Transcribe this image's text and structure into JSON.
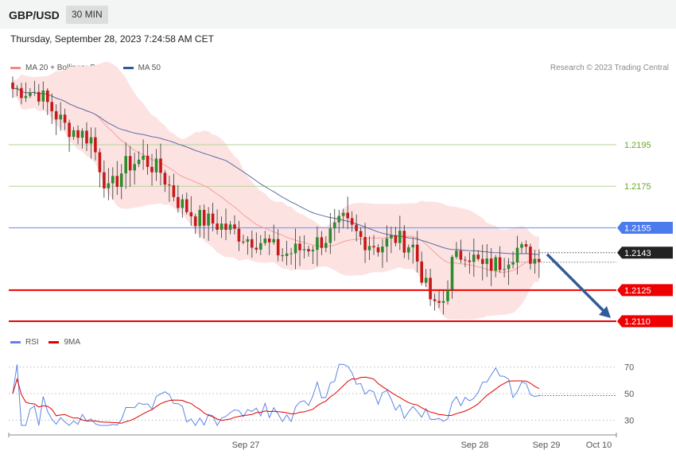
{
  "header": {
    "symbol": "GBP/USD",
    "interval": "30 MIN",
    "timestamp": "Thursday, September 28, 2023 7:24:58 AM CET"
  },
  "legend": {
    "items": [
      {
        "label": "MA 20 + Bollinger Bands",
        "color": "#f28b82"
      },
      {
        "label": "MA 50",
        "color": "#2f5b9a"
      }
    ]
  },
  "credit": "Research © 2023 Trading Central",
  "rsi_legend": {
    "items": [
      {
        "label": "RSI",
        "color": "#5b86e5"
      },
      {
        "label": "9MA",
        "color": "#e00000"
      }
    ]
  },
  "chart_data": [
    {
      "type": "candlestick",
      "y_range": [
        1.21,
        1.223
      ],
      "price_levels": [
        {
          "value": 1.2195,
          "label": "1.2195",
          "kind": "resistance-minor",
          "color": "#6aa82a"
        },
        {
          "value": 1.2175,
          "label": "1.2175",
          "kind": "resistance-minor",
          "color": "#6aa82a"
        },
        {
          "value": 1.2155,
          "label": "1.2155",
          "kind": "pivot",
          "color": "#4b7bec"
        },
        {
          "value": 1.2143,
          "label": "1.2143",
          "kind": "last-price",
          "color": "#222222"
        },
        {
          "value": 1.2125,
          "label": "1.2125",
          "kind": "support",
          "color": "#ee0000"
        },
        {
          "value": 1.211,
          "label": "1.2110",
          "kind": "support",
          "color": "#ee0000"
        }
      ],
      "x_labels": [
        "Sep 27",
        "Sep 28",
        "Sep 29",
        "Oct 10"
      ],
      "forecast_arrow": {
        "from": 1.2143,
        "to": 1.211,
        "direction": "down",
        "color": "#2f5b9a"
      },
      "series": [
        {
          "name": "MA 20 + Bollinger Bands",
          "color": "#f28b82"
        },
        {
          "name": "MA 50",
          "color": "#2f5b9a"
        }
      ]
    },
    {
      "type": "line",
      "y_ticks": [
        30,
        50,
        70
      ],
      "y_range": [
        20,
        80
      ],
      "series": [
        {
          "name": "RSI",
          "color": "#5b86e5"
        },
        {
          "name": "9MA",
          "color": "#e00000"
        }
      ]
    }
  ]
}
